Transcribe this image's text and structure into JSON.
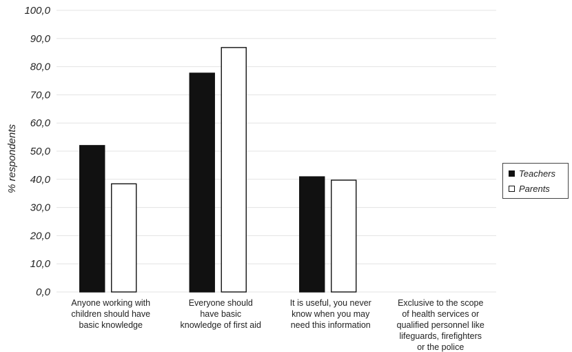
{
  "chart_data": {
    "type": "bar",
    "ylabel": "% respondents",
    "ylim": [
      0,
      100
    ],
    "yticks": [
      "0,0",
      "10,0",
      "20,0",
      "30,0",
      "40,0",
      "50,0",
      "60,0",
      "70,0",
      "80,0",
      "90,0",
      "100,0"
    ],
    "categories": [
      [
        "Anyone working with",
        "children should have",
        "basic knowledge"
      ],
      [
        "Everyone should",
        "have basic",
        "knowledge of first aid"
      ],
      [
        "It is useful, you never",
        "know when you may",
        "need this information"
      ],
      [
        "Exclusive to the scope",
        "of health services or",
        "qualified personnel like",
        "lifeguards, firefighters",
        "or the police"
      ]
    ],
    "series": [
      {
        "name": "Teachers",
        "color": "#111111",
        "values": [
          52.0,
          77.7,
          40.9,
          0
        ]
      },
      {
        "name": "Parents",
        "color": "#ffffff",
        "values": [
          38.4,
          86.8,
          39.7,
          0
        ]
      }
    ],
    "grid": true,
    "legend_position": "right"
  }
}
